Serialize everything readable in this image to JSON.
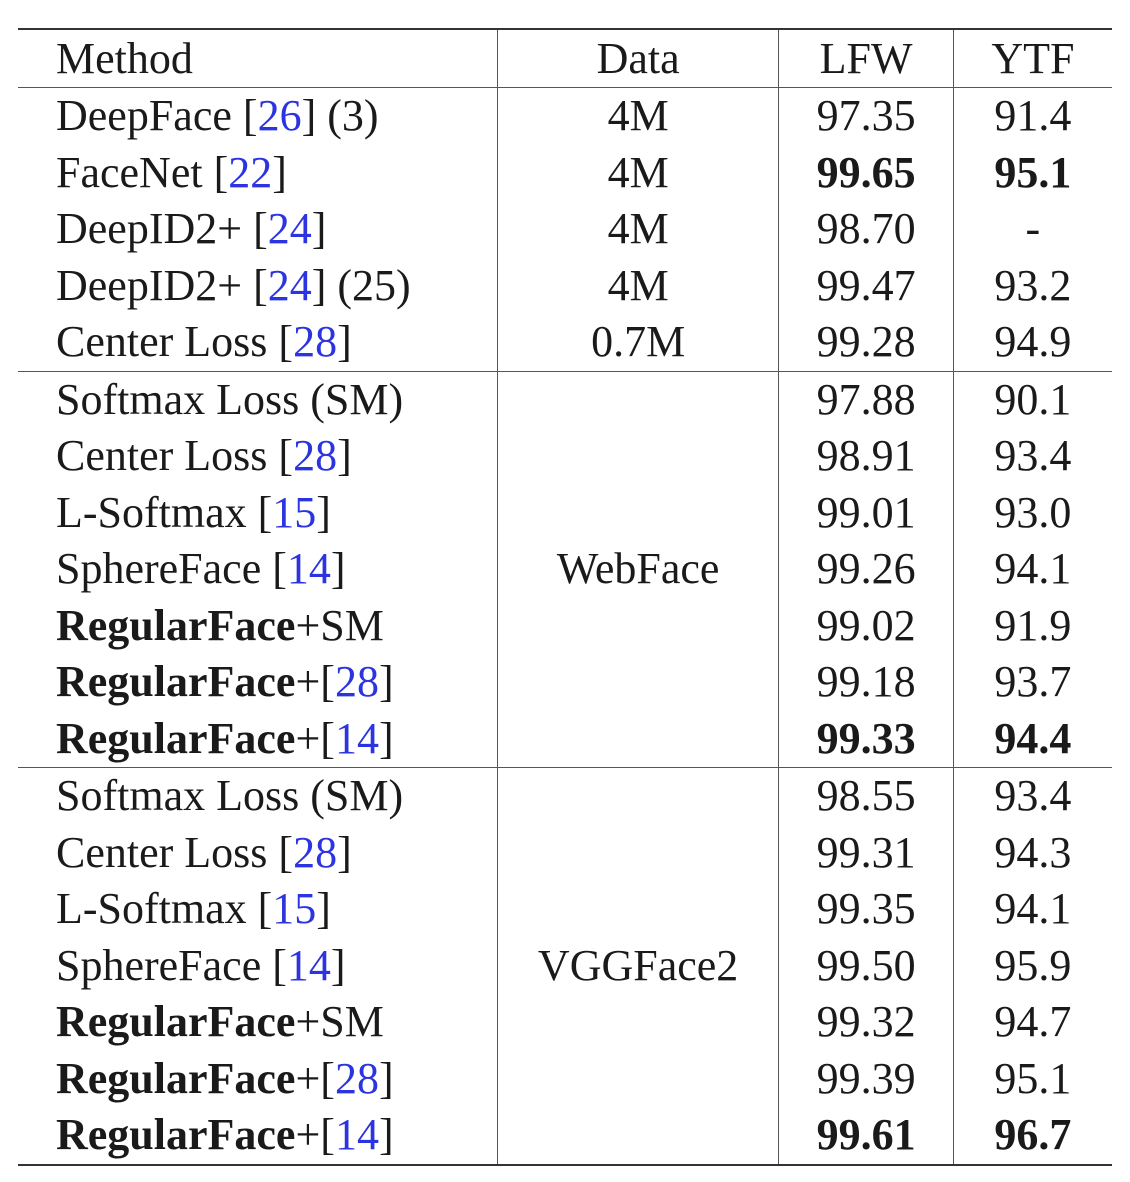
{
  "header": {
    "method": "Method",
    "data": "Data",
    "lfw": "LFW",
    "ytf": "YTF"
  },
  "group1": [
    {
      "name": "DeepFace ",
      "ref": "26",
      "suffix": " (3)",
      "data": "4M",
      "lfw": "97.35",
      "ytf": "91.4"
    },
    {
      "name": "FaceNet ",
      "ref": "22",
      "suffix": "",
      "data": "4M",
      "lfw": "99.65",
      "ytf": "95.1"
    },
    {
      "name": "DeepID2+ ",
      "ref": "24",
      "suffix": "",
      "data": "4M",
      "lfw": "98.70",
      "ytf": "-"
    },
    {
      "name": "DeepID2+ ",
      "ref": "24",
      "suffix": " (25)",
      "data": "4M",
      "lfw": "99.47",
      "ytf": "93.2"
    },
    {
      "name": "Center Loss ",
      "ref": "28",
      "suffix": "",
      "data": "0.7M",
      "lfw": "99.28",
      "ytf": "94.9"
    }
  ],
  "group2": {
    "data": "WebFace",
    "rows": [
      {
        "name": "Softmax Loss (SM)",
        "lfw": "97.88",
        "ytf": "90.1"
      },
      {
        "name": "Center Loss ",
        "ref": "28",
        "lfw": "98.91",
        "ytf": "93.4"
      },
      {
        "name": "L-Softmax ",
        "ref": "15",
        "lfw": "99.01",
        "ytf": "93.0"
      },
      {
        "name": "SphereFace ",
        "ref": "14",
        "lfw": "99.26",
        "ytf": "94.1"
      },
      {
        "bold": "RegularFace",
        "name": "+SM",
        "lfw": "99.02",
        "ytf": "91.9"
      },
      {
        "bold": "RegularFace",
        "name": "+",
        "ref": "28",
        "lfw": "99.18",
        "ytf": "93.7"
      },
      {
        "bold": "RegularFace",
        "name": "+",
        "ref": "14",
        "lfw": "99.33",
        "ytf": "94.4"
      }
    ]
  },
  "group3": {
    "data": "VGGFace2",
    "rows": [
      {
        "name": "Softmax Loss (SM)",
        "lfw": "98.55",
        "ytf": "93.4"
      },
      {
        "name": "Center Loss ",
        "ref": "28",
        "lfw": "99.31",
        "ytf": "94.3"
      },
      {
        "name": "L-Softmax ",
        "ref": "15",
        "lfw": "99.35",
        "ytf": "94.1"
      },
      {
        "name": "SphereFace ",
        "ref": "14",
        "lfw": "99.50",
        "ytf": "95.9"
      },
      {
        "bold": "RegularFace",
        "name": "+SM",
        "lfw": "99.32",
        "ytf": "94.7"
      },
      {
        "bold": "RegularFace",
        "name": "+",
        "ref": "28",
        "lfw": "99.39",
        "ytf": "95.1"
      },
      {
        "bold": "RegularFace",
        "name": "+",
        "ref": "14",
        "lfw": "99.61",
        "ytf": "96.7"
      }
    ]
  },
  "colors": {
    "reference_link": "#2b34e0",
    "text": "#1a1a1a",
    "rules": "#333333"
  }
}
